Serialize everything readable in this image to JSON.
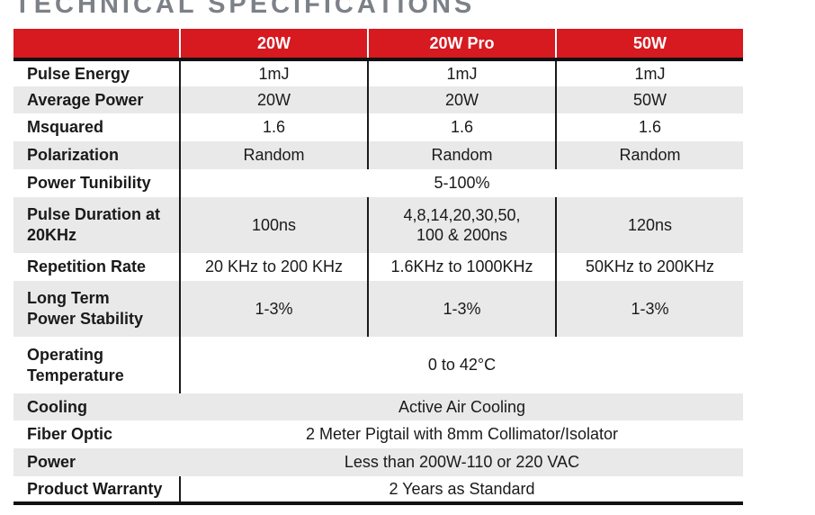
{
  "title": "TECHNICAL SPECIFICATIONS",
  "columns": [
    "",
    "20W",
    "20W Pro",
    "50W"
  ],
  "rows": [
    {
      "label": "Pulse Energy",
      "values": [
        "1mJ",
        "1mJ",
        "1mJ"
      ]
    },
    {
      "label": "Average Power",
      "values": [
        "20W",
        "20W",
        "50W"
      ]
    },
    {
      "label": "Msquared",
      "values": [
        "1.6",
        "1.6",
        "1.6"
      ]
    },
    {
      "label": "Polarization",
      "values": [
        "Random",
        "Random",
        "Random"
      ]
    },
    {
      "label": "Power Tunibility",
      "value": "5-100%"
    },
    {
      "label": "Pulse Duration at 20KHz",
      "values": [
        "100ns",
        "4,8,14,20,30,50, 100 & 200ns",
        "120ns"
      ]
    },
    {
      "label": "Repetition Rate",
      "values": [
        "20 KHz to 200 KHz",
        "1.6KHz to 1000KHz",
        "50KHz to 200KHz"
      ]
    },
    {
      "label": "Long Term Power Stability",
      "values": [
        "1-3%",
        "1-3%",
        "1-3%"
      ]
    },
    {
      "label": "Operating Temperature",
      "value": "0 to 42°C"
    },
    {
      "label": "Cooling",
      "value": "Active Air Cooling"
    },
    {
      "label": "Fiber Optic",
      "value": "2 Meter Pigtail with 8mm Collimator/Isolator"
    },
    {
      "label": "Power",
      "value": "Less than 200W-110 or 220 VAC"
    },
    {
      "label": "Product Warranty",
      "value": "2 Years as Standard"
    }
  ],
  "colors": {
    "header_bg": "#d71920",
    "header_text": "#ffffff",
    "row_shade": "#e9e9e9",
    "title_color": "#7c8188"
  }
}
